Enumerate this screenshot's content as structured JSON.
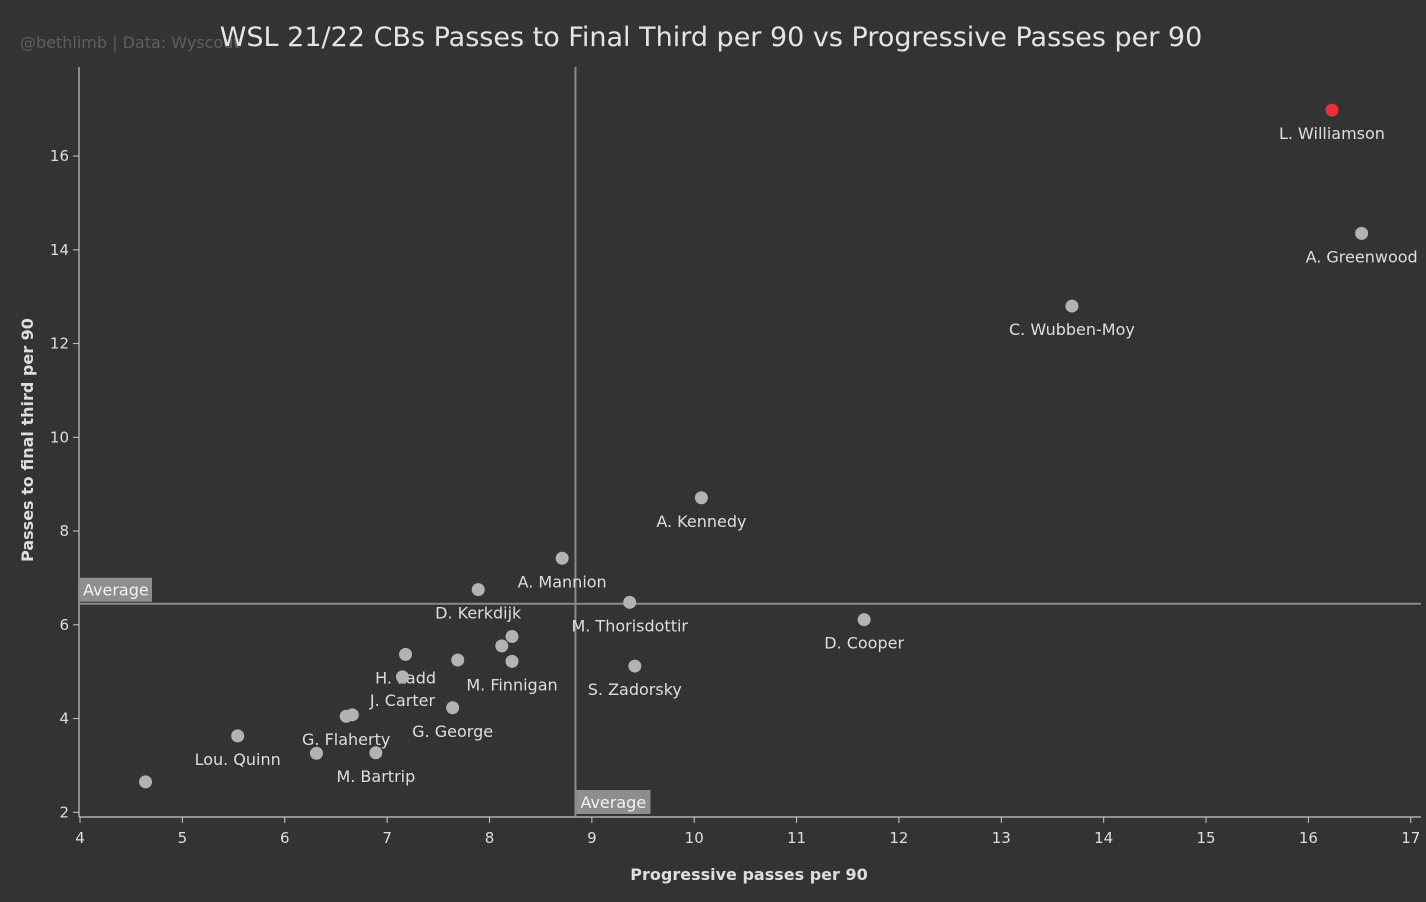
{
  "watermark": "@bethlimb | Data: Wyscout",
  "chart_data": {
    "type": "scatter",
    "title": "WSL 21/22 CBs Passes to Final Third per 90 vs Progressive Passes per 90",
    "xlabel": "Progressive passes per 90",
    "ylabel": "Passes to final third per 90",
    "xlim": [
      3.99,
      17.1
    ],
    "ylim": [
      1.9,
      17.9
    ],
    "x_ticks": [
      4,
      5,
      6,
      7,
      8,
      9,
      10,
      11,
      12,
      13,
      14,
      15,
      16,
      17
    ],
    "y_ticks": [
      2,
      4,
      6,
      8,
      10,
      12,
      14,
      16
    ],
    "grid": false,
    "averages": {
      "x": 8.84,
      "y": 6.45,
      "label": "Average"
    },
    "colors": {
      "background": "#333333",
      "point": "#b3b3b3",
      "highlight": "#e8303e",
      "text": "#dedede",
      "reference_line": "#8a8a8a",
      "average_label_bg": "#8e8e8e"
    },
    "points": [
      {
        "label": "L. Williamson",
        "x": 16.23,
        "y": 16.98,
        "highlight": true
      },
      {
        "label": "A. Greenwood",
        "x": 16.52,
        "y": 14.35
      },
      {
        "label": "C. Wubben-Moy",
        "x": 13.69,
        "y": 12.8
      },
      {
        "label": "A. Kennedy",
        "x": 10.07,
        "y": 8.71
      },
      {
        "label": "A. Mannion",
        "x": 8.71,
        "y": 7.42
      },
      {
        "label": "D. Kerkdijk",
        "x": 7.89,
        "y": 6.75
      },
      {
        "label": "M. Thorisdottir",
        "x": 9.37,
        "y": 6.48
      },
      {
        "label": "D. Cooper",
        "x": 11.66,
        "y": 6.11
      },
      {
        "label": "",
        "x": 8.22,
        "y": 5.75
      },
      {
        "label": "",
        "x": 8.12,
        "y": 5.55
      },
      {
        "label": "H. Ladd",
        "x": 7.18,
        "y": 5.37
      },
      {
        "label": "",
        "x": 7.69,
        "y": 5.25
      },
      {
        "label": "M. Finnigan",
        "x": 8.22,
        "y": 5.22
      },
      {
        "label": "S. Zadorsky",
        "x": 9.42,
        "y": 5.12
      },
      {
        "label": "J. Carter",
        "x": 7.15,
        "y": 4.89
      },
      {
        "label": "G. George",
        "x": 7.64,
        "y": 4.23
      },
      {
        "label": "",
        "x": 6.66,
        "y": 4.08
      },
      {
        "label": "G. Flaherty",
        "x": 6.6,
        "y": 4.05
      },
      {
        "label": "Lou. Quinn",
        "x": 5.54,
        "y": 3.63
      },
      {
        "label": "",
        "x": 6.31,
        "y": 3.26
      },
      {
        "label": "M. Bartrip",
        "x": 6.89,
        "y": 3.27
      },
      {
        "label": "",
        "x": 4.64,
        "y": 2.65
      }
    ]
  }
}
